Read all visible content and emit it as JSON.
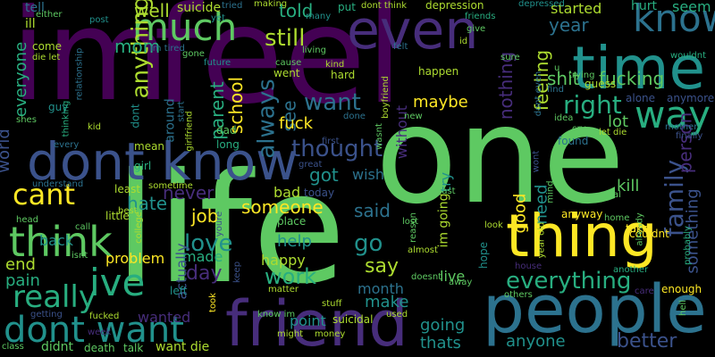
{
  "palette": [
    "#440154",
    "#472d7b",
    "#3b528b",
    "#2c728e",
    "#21918c",
    "#28ae80",
    "#5ec962",
    "#addc30",
    "#fde725"
  ],
  "words": [
    {
      "text": "im"
    },
    {
      "text": "feel"
    },
    {
      "text": "one"
    },
    {
      "text": "life"
    },
    {
      "text": "people"
    },
    {
      "text": "friend"
    },
    {
      "text": "dont know"
    },
    {
      "text": "time"
    },
    {
      "text": "thing"
    },
    {
      "text": "even"
    },
    {
      "text": "much"
    },
    {
      "text": "think"
    },
    {
      "text": "want"
    },
    {
      "text": "ive"
    },
    {
      "text": "know"
    },
    {
      "text": "way"
    },
    {
      "text": "dont want"
    },
    {
      "text": "cant"
    },
    {
      "text": "really"
    },
    {
      "text": "anything"
    },
    {
      "text": "thought"
    },
    {
      "text": "still"
    },
    {
      "text": "family"
    },
    {
      "text": "right"
    },
    {
      "text": "shit"
    },
    {
      "text": "fucking"
    },
    {
      "text": "year"
    },
    {
      "text": "always"
    },
    {
      "text": "everything"
    },
    {
      "text": "go"
    },
    {
      "text": "love"
    },
    {
      "text": "work"
    },
    {
      "text": "better"
    },
    {
      "text": "day"
    },
    {
      "text": "say"
    },
    {
      "text": "mom"
    },
    {
      "text": "never"
    },
    {
      "text": "said"
    },
    {
      "text": "well"
    },
    {
      "text": "told"
    },
    {
      "text": "feeling"
    },
    {
      "text": "nothing"
    },
    {
      "text": "school"
    },
    {
      "text": "parent"
    },
    {
      "text": "job"
    },
    {
      "text": "hate"
    },
    {
      "text": "someone"
    },
    {
      "text": "got"
    },
    {
      "text": "see"
    },
    {
      "text": "help"
    },
    {
      "text": "make"
    },
    {
      "text": "going"
    },
    {
      "text": "thats"
    },
    {
      "text": "anyone"
    },
    {
      "text": "good"
    },
    {
      "text": "need"
    },
    {
      "text": "person"
    },
    {
      "text": "something"
    },
    {
      "text": "maybe"
    },
    {
      "text": "lot"
    },
    {
      "text": "fuck"
    },
    {
      "text": "kill"
    },
    {
      "text": "world"
    },
    {
      "text": "everyone"
    },
    {
      "text": "end"
    },
    {
      "text": "pain"
    },
    {
      "text": "back"
    },
    {
      "text": "problem"
    },
    {
      "text": "made"
    },
    {
      "text": "happy"
    },
    {
      "text": "actually"
    },
    {
      "text": "wanted"
    },
    {
      "text": "month"
    },
    {
      "text": "point"
    },
    {
      "text": "live"
    },
    {
      "text": "wish"
    },
    {
      "text": "try"
    },
    {
      "text": "im going"
    },
    {
      "text": "started"
    },
    {
      "text": "seem"
    },
    {
      "text": "hurt"
    },
    {
      "text": "suicide"
    },
    {
      "text": "depression"
    },
    {
      "text": "bad"
    },
    {
      "text": "tell"
    },
    {
      "text": "ill"
    },
    {
      "text": "every"
    },
    {
      "text": "guy"
    },
    {
      "text": "friends"
    },
    {
      "text": "mean"
    },
    {
      "text": "girl"
    },
    {
      "text": "dad"
    },
    {
      "text": "first"
    },
    {
      "text": "great"
    },
    {
      "text": "today"
    },
    {
      "text": "place"
    },
    {
      "text": "others"
    },
    {
      "text": "enough"
    },
    {
      "text": "alone"
    },
    {
      "text": "anymore"
    },
    {
      "text": "finally"
    },
    {
      "text": "found"
    },
    {
      "text": "cry"
    },
    {
      "text": "let die"
    },
    {
      "text": "mother"
    },
    {
      "text": "idea"
    },
    {
      "text": "boyfriend"
    },
    {
      "text": "without"
    },
    {
      "text": "wasnt"
    },
    {
      "text": "hard"
    },
    {
      "text": "went"
    },
    {
      "text": "kind"
    },
    {
      "text": "happen"
    },
    {
      "text": "cause"
    },
    {
      "text": "living"
    },
    {
      "text": "felt"
    },
    {
      "text": "put"
    },
    {
      "text": "dont think"
    },
    {
      "text": "id"
    },
    {
      "text": "give"
    },
    {
      "text": "making"
    },
    {
      "text": "tried"
    },
    {
      "text": "yet"
    },
    {
      "text": "post"
    },
    {
      "text": "either"
    },
    {
      "text": "relationship"
    },
    {
      "text": "come"
    },
    {
      "text": "die let"
    },
    {
      "text": "im tired"
    },
    {
      "text": "gone"
    },
    {
      "text": "future"
    },
    {
      "text": "many"
    },
    {
      "text": "depressed"
    },
    {
      "text": "trying"
    },
    {
      "text": "guess"
    },
    {
      "text": "u"
    },
    {
      "text": "find"
    },
    {
      "text": "wouldnt"
    },
    {
      "text": "dont even"
    },
    {
      "text": "new"
    },
    {
      "text": "done"
    },
    {
      "text": "thinking"
    },
    {
      "text": "kid"
    },
    {
      "text": "start"
    },
    {
      "text": "shes"
    },
    {
      "text": "sometime"
    },
    {
      "text": "understand"
    },
    {
      "text": "head"
    },
    {
      "text": "call"
    },
    {
      "text": "least"
    },
    {
      "text": "best"
    },
    {
      "text": "little"
    },
    {
      "text": "isnt"
    },
    {
      "text": "college"
    },
    {
      "text": "youre"
    },
    {
      "text": "keep"
    },
    {
      "text": "left"
    },
    {
      "text": "took"
    },
    {
      "text": "matter"
    },
    {
      "text": "stuff"
    },
    {
      "text": "used"
    },
    {
      "text": "suicidal"
    },
    {
      "text": "getting"
    },
    {
      "text": "fucked"
    },
    {
      "text": "week"
    },
    {
      "text": "class"
    },
    {
      "text": "didnt"
    },
    {
      "text": "death"
    },
    {
      "text": "talk"
    },
    {
      "text": "want die"
    },
    {
      "text": "might"
    },
    {
      "text": "money"
    },
    {
      "text": "know im"
    },
    {
      "text": "reason"
    },
    {
      "text": "lost"
    },
    {
      "text": "almost"
    },
    {
      "text": "hope"
    },
    {
      "text": "away"
    },
    {
      "text": "doesnt"
    },
    {
      "text": "house"
    },
    {
      "text": "look"
    },
    {
      "text": "year old"
    },
    {
      "text": "couldnt"
    },
    {
      "text": "home"
    },
    {
      "text": "anyway"
    },
    {
      "text": "already"
    },
    {
      "text": "take"
    },
    {
      "text": "probably"
    },
    {
      "text": "another"
    },
    {
      "text": "real"
    },
    {
      "text": "past"
    },
    {
      "text": "mind"
    },
    {
      "text": "wont"
    },
    {
      "text": "hell"
    },
    {
      "text": "care"
    },
    {
      "text": "around"
    },
    {
      "text": "girlfriend"
    },
    {
      "text": "long"
    },
    {
      "text": "dont"
    },
    {
      "text": "sure"
    }
  ]
}
